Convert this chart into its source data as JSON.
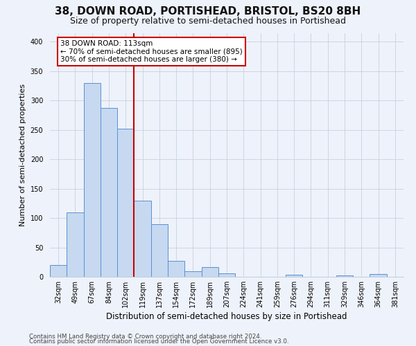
{
  "title": "38, DOWN ROAD, PORTISHEAD, BRISTOL, BS20 8BH",
  "subtitle": "Size of property relative to semi-detached houses in Portishead",
  "xlabel": "Distribution of semi-detached houses by size in Portishead",
  "ylabel": "Number of semi-detached properties",
  "categories": [
    "32sqm",
    "49sqm",
    "67sqm",
    "84sqm",
    "102sqm",
    "119sqm",
    "137sqm",
    "154sqm",
    "172sqm",
    "189sqm",
    "207sqm",
    "224sqm",
    "241sqm",
    "259sqm",
    "276sqm",
    "294sqm",
    "311sqm",
    "329sqm",
    "346sqm",
    "364sqm",
    "381sqm"
  ],
  "values": [
    20,
    110,
    330,
    287,
    252,
    130,
    90,
    27,
    10,
    17,
    6,
    0,
    0,
    0,
    3,
    0,
    0,
    2,
    0,
    5,
    0
  ],
  "bar_color": "#c6d9f0",
  "bar_edge_color": "#5b8fd4",
  "vline_color": "#cc0000",
  "annotation_text": "38 DOWN ROAD: 113sqm\n← 70% of semi-detached houses are smaller (895)\n30% of semi-detached houses are larger (380) →",
  "annotation_box_color": "#ffffff",
  "annotation_box_edge": "#cc0000",
  "ylim": [
    0,
    415
  ],
  "footer1": "Contains HM Land Registry data © Crown copyright and database right 2024.",
  "footer2": "Contains public sector information licensed under the Open Government Licence v3.0.",
  "background_color": "#eef2fa",
  "title_fontsize": 11,
  "subtitle_fontsize": 9,
  "tick_fontsize": 7,
  "ylabel_fontsize": 8,
  "xlabel_fontsize": 8.5
}
